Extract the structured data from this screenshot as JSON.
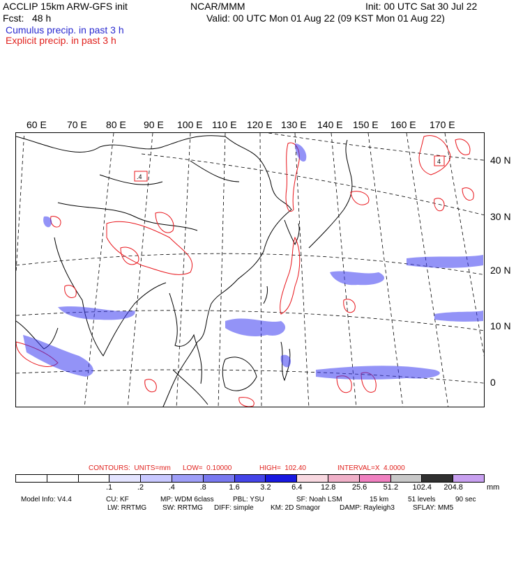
{
  "header": {
    "model_title": "ACCLIP 15km ARW-GFS init",
    "org": "NCAR/MMM",
    "init": "Init: 00 UTC Sat 30 Jul 22",
    "fcst": "Fcst:   48 h",
    "valid": "Valid: 00 UTC Mon 01 Aug 22 (09 KST Mon 01 Aug 22)",
    "cumulus": "Cumulus precip. in past 3 h",
    "explicit": "Explicit precip. in past 3 h"
  },
  "map": {
    "lon_labels": [
      "60 E",
      "70 E",
      "80 E",
      "90 E",
      "100 E",
      "110 E",
      "120 E",
      "130 E",
      "140 E",
      "150 E",
      "160 E",
      "170 E"
    ],
    "lat_labels": [
      "40 N",
      "30 N",
      "20 N",
      "10 N",
      "0"
    ],
    "colors": {
      "coast": "#000000",
      "grid": "#000000",
      "cumulus_precip": "#3a3af0",
      "explicit_precip": "#e8141a"
    },
    "box_labels": [
      ".4",
      "4"
    ]
  },
  "contours": {
    "units": "CONTOURS:  UNITS=mm",
    "low": "LOW=  0.10000",
    "high": "HIGH=  102.40",
    "interval": "INTERVAL=X  4.0000"
  },
  "colorbar": {
    "colors": [
      "#ffffff",
      "#ffffff",
      "#ffffff",
      "#e4e4ff",
      "#c8c8ff",
      "#9e9ef8",
      "#7878f0",
      "#4444e8",
      "#1818e0",
      "#f8d8e0",
      "#f0b0c8",
      "#f080c0",
      "#c8c8c8",
      "#303030",
      "#c8a0f0"
    ],
    "ticks": [
      ".1",
      ".2",
      ".4",
      ".8",
      "1.6",
      "3.2",
      "6.4",
      "12.8",
      "25.6",
      "51.2",
      "102.4",
      "204.8"
    ],
    "unit": "mm"
  },
  "model_info": {
    "line1": [
      "Model Info: V4.4",
      "CU: KF",
      "MP: WDM 6class",
      "PBL: YSU",
      "SF: Noah LSM",
      "15 km",
      "51 levels",
      "90 sec"
    ],
    "line2": [
      "LW: RRTMG",
      "SW: RRTMG",
      "DIFF: simple",
      "KM: 2D Smagor",
      "DAMP: Rayleigh3",
      "SFLAY: MM5"
    ]
  }
}
